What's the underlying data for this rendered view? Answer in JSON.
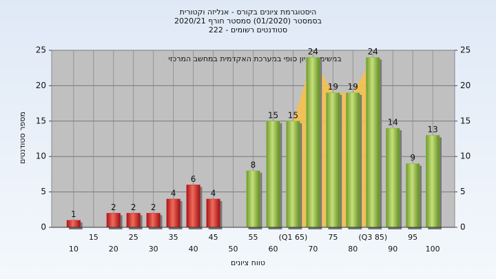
{
  "chart_data": {
    "type": "bar",
    "title": [
      "היסטוגרמת ציונים בקורס - אנליזה וקטורית",
      "בסמסטר  (01/2020)  סמסטר חורף 2020/21",
      "סטודנטים רשומים - 222"
    ],
    "subtitle": "במשימה: ציון סופי במערכת האקדמית במחשב המרכזי",
    "y_label": "מספר סטודנטים",
    "x_label": "טווח ציונים",
    "categories": [
      "10",
      "15",
      "20",
      "25",
      "30",
      "35",
      "40",
      "45",
      "50",
      "55",
      "60",
      "(Q1 65)",
      "70",
      "75",
      "80",
      "(Q3 85)",
      "90",
      "95",
      "100"
    ],
    "values": [
      1,
      null,
      2,
      2,
      2,
      4,
      6,
      4,
      null,
      8,
      15,
      15,
      24,
      19,
      19,
      24,
      14,
      9,
      13
    ],
    "bar_colors": [
      "#d9262b",
      "#d9262b",
      "#d9262b",
      "#d9262b",
      "#d9262b",
      "#d9262b",
      "#d9262b",
      "#d9262b",
      "#d9262b",
      "#8cbf3f",
      "#8cbf3f",
      "#8cbf3f",
      "#8cbf3f",
      "#8cbf3f",
      "#8cbf3f",
      "#8cbf3f",
      "#8cbf3f",
      "#8cbf3f",
      "#8cbf3f"
    ],
    "ylim": [
      0,
      25
    ],
    "yticks": [
      0,
      5,
      10,
      15,
      20,
      25
    ],
    "grid": true
  }
}
